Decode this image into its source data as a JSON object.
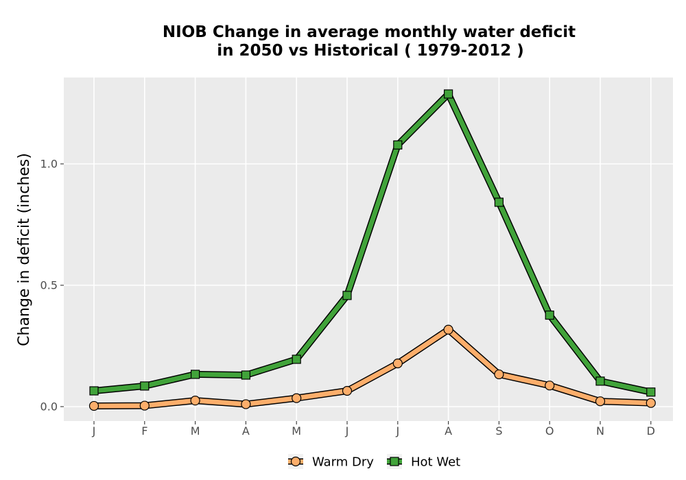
{
  "chart_data": {
    "type": "line",
    "title_line1": "NIOB  Change in average monthly water deficit",
    "title_line2": "in 2050 vs Historical ( 1979-2012 )",
    "ylabel": "Change in deficit (inches)",
    "xlabel": "",
    "categories": [
      "J",
      "F",
      "M",
      "A",
      "M",
      "J",
      "J",
      "A",
      "S",
      "O",
      "N",
      "D"
    ],
    "y_ticks": [
      "0.0",
      "0.5",
      "1.0"
    ],
    "y_tick_values": [
      0.0,
      0.5,
      1.0
    ],
    "ylim": [
      -0.07,
      1.36
    ],
    "grid": true,
    "legend_position": "bottom",
    "series": [
      {
        "name": "Warm Dry",
        "marker": "circle",
        "color": "#fdae6b",
        "values": [
          0.003,
          0.004,
          0.025,
          0.01,
          0.035,
          0.065,
          0.178,
          0.317,
          0.133,
          0.087,
          0.022,
          0.015
        ]
      },
      {
        "name": "Hot Wet",
        "marker": "square",
        "color": "#41a33a",
        "values": [
          0.065,
          0.085,
          0.133,
          0.13,
          0.195,
          0.458,
          1.078,
          1.288,
          0.842,
          0.377,
          0.105,
          0.06
        ]
      }
    ],
    "colors": {
      "panel_background": "#ebebeb",
      "grid": "#ffffff",
      "outline": "#000000"
    }
  }
}
